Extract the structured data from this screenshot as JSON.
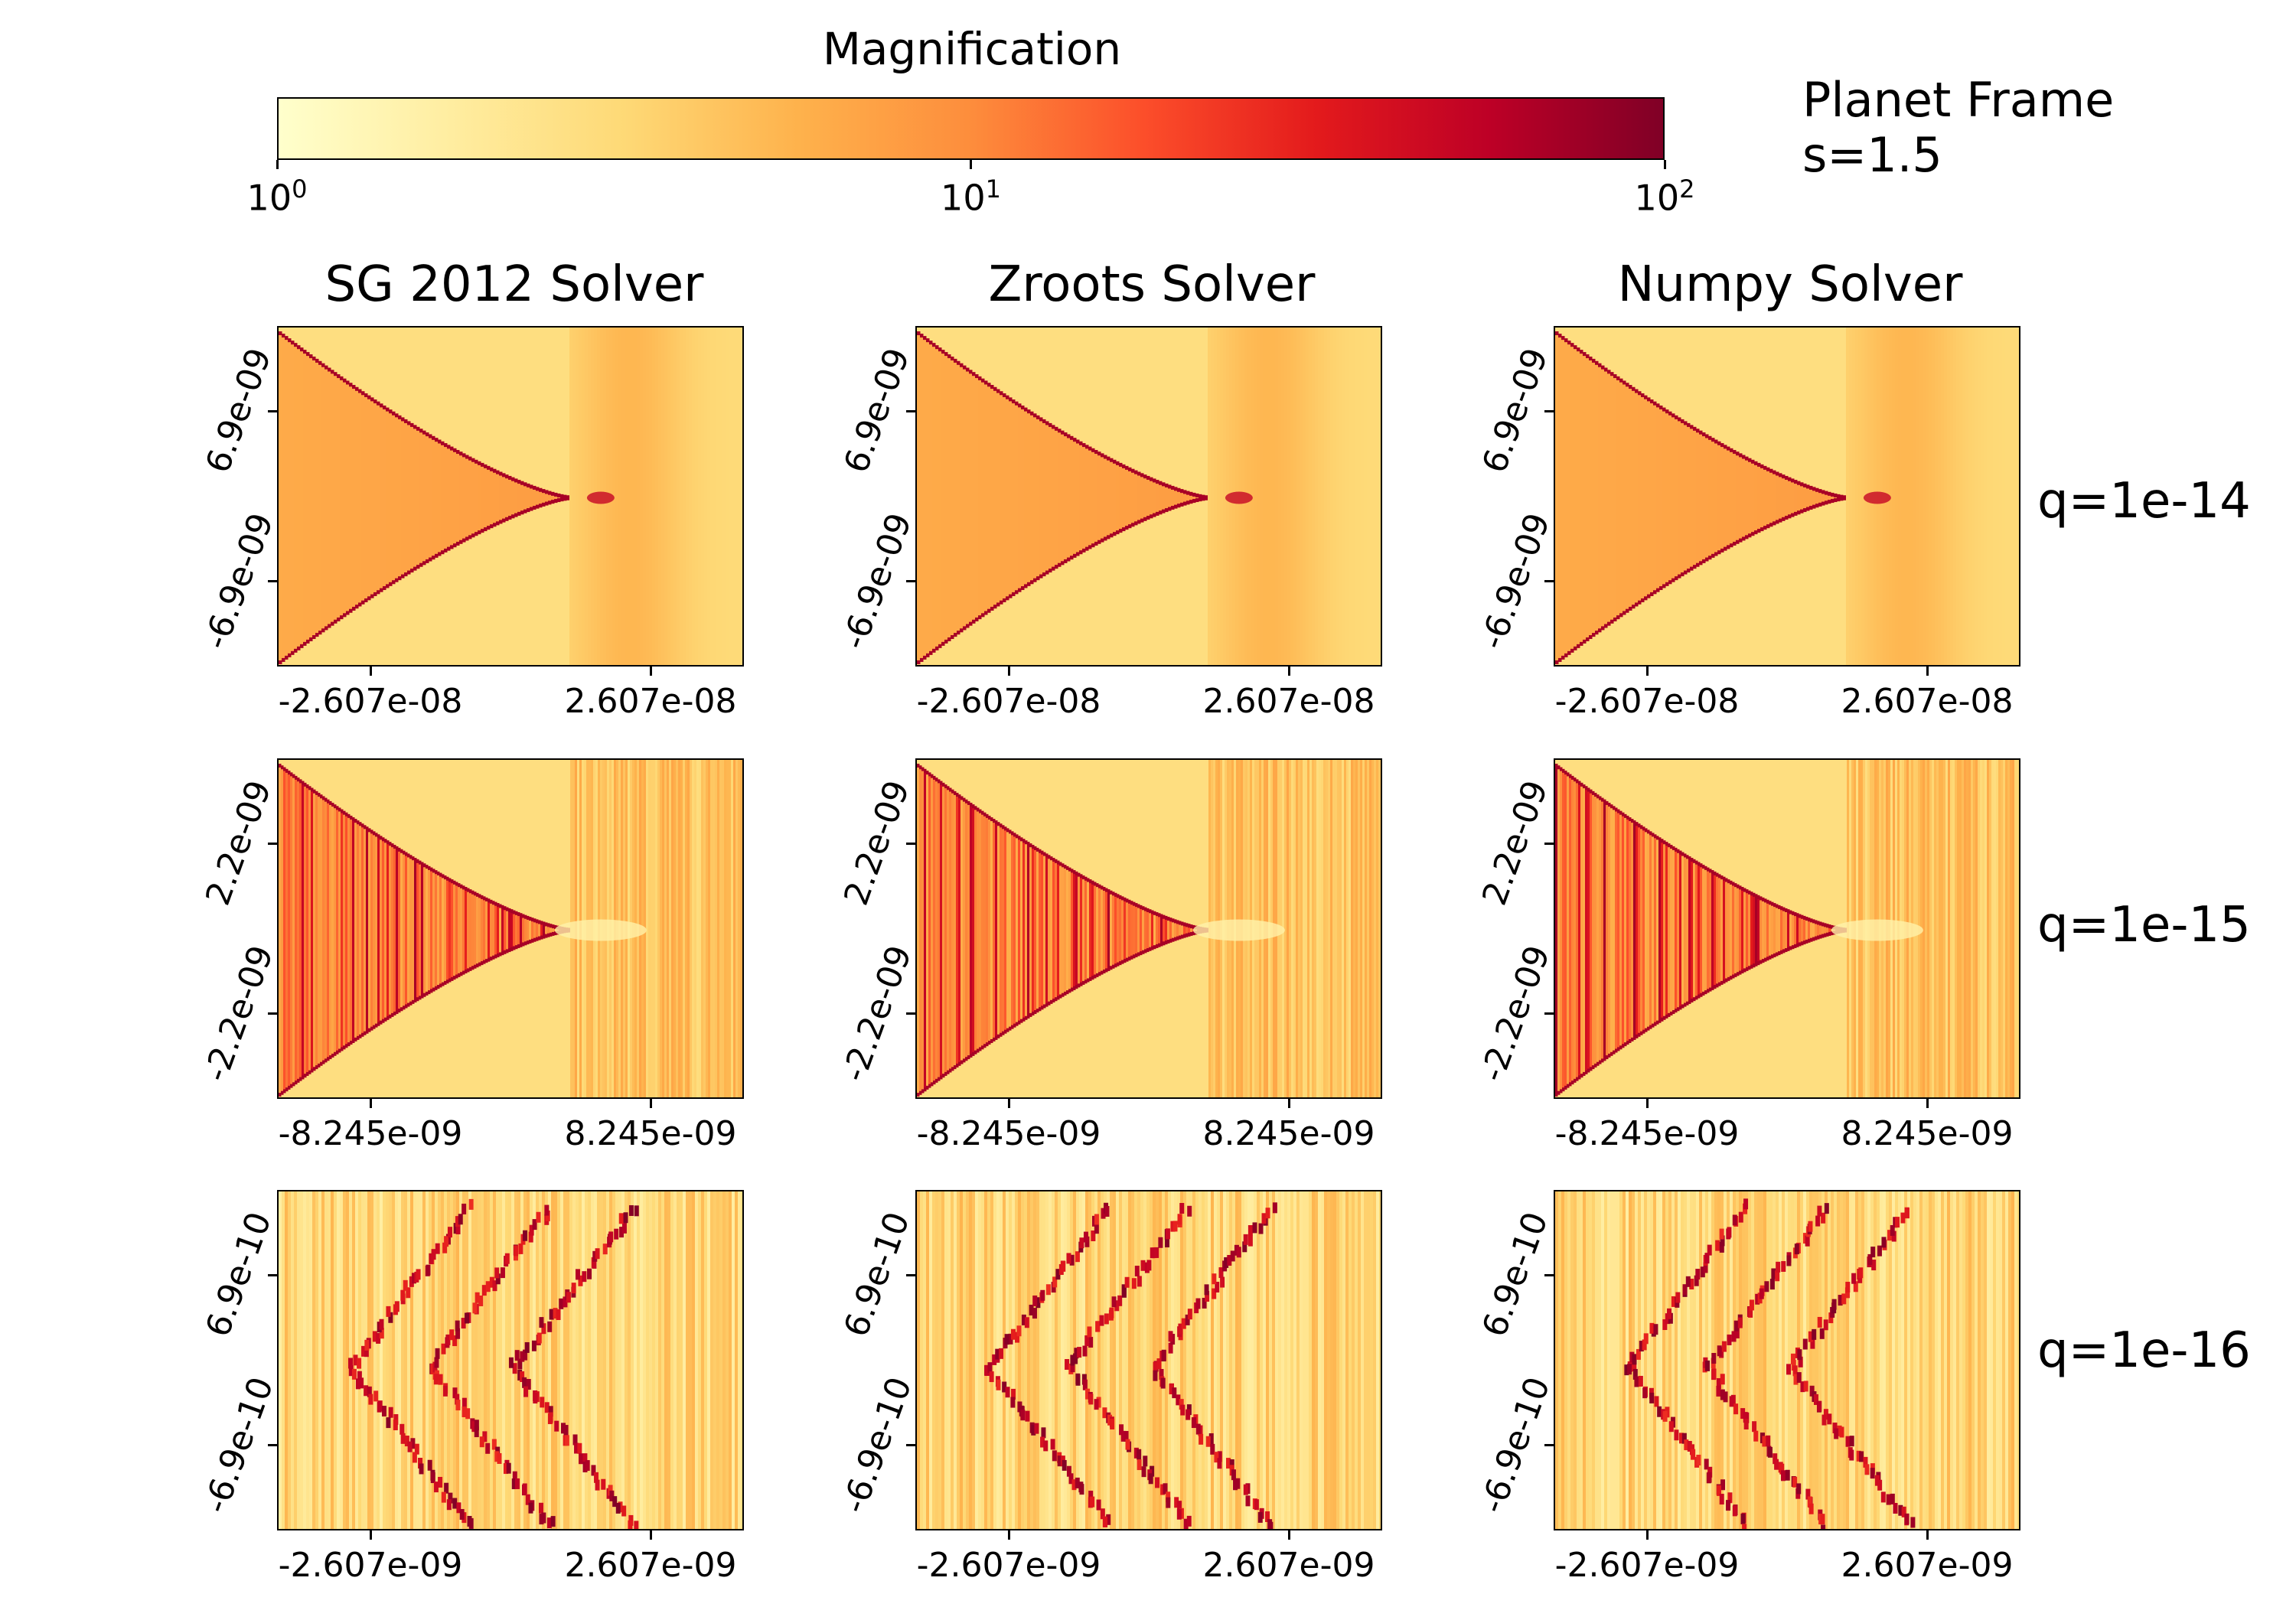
{
  "colorbar": {
    "label": "Magnification",
    "scale": "log",
    "range": [
      1,
      100
    ],
    "ticks": [
      {
        "base": "10",
        "exp": "0",
        "value": 1
      },
      {
        "base": "10",
        "exp": "1",
        "value": 10
      },
      {
        "base": "10",
        "exp": "2",
        "value": 100
      }
    ],
    "colormap": "YlOrRd",
    "colors": [
      "#ffffcc",
      "#ffeda0",
      "#fed976",
      "#feb24c",
      "#fd8d3c",
      "#fc4e2a",
      "#e31a1c",
      "#bd0026",
      "#800026"
    ]
  },
  "frame_title": {
    "line1": "Planet Frame",
    "line2": "s=1.5"
  },
  "columns": [
    "SG 2012 Solver",
    "Zroots Solver",
    "Numpy Solver"
  ],
  "rows": [
    {
      "label": "q=1e-14",
      "xticks": [
        "-2.607e-08",
        "2.607e-08"
      ],
      "yticks": [
        "6.9e-09",
        "-6.9e-09"
      ],
      "pattern": "smooth"
    },
    {
      "label": "q=1e-15",
      "xticks": [
        "-8.245e-09",
        "8.245e-09"
      ],
      "yticks": [
        "2.2e-09",
        "-2.2e-09"
      ],
      "pattern": "striped"
    },
    {
      "label": "q=1e-16",
      "xticks": [
        "-2.607e-09",
        "2.607e-09"
      ],
      "yticks": [
        "6.9e-10",
        "-6.9e-10"
      ],
      "pattern": "noisy"
    }
  ],
  "chart_data": {
    "type": "heatmap",
    "title": "",
    "quantity": "Magnification",
    "color_scale": "log",
    "zlim": [
      1,
      100
    ],
    "panels_grid": [
      3,
      3
    ],
    "description": "3x3 grid of magnification maps; columns are solvers, rows are planet/star mass ratio q"
  }
}
